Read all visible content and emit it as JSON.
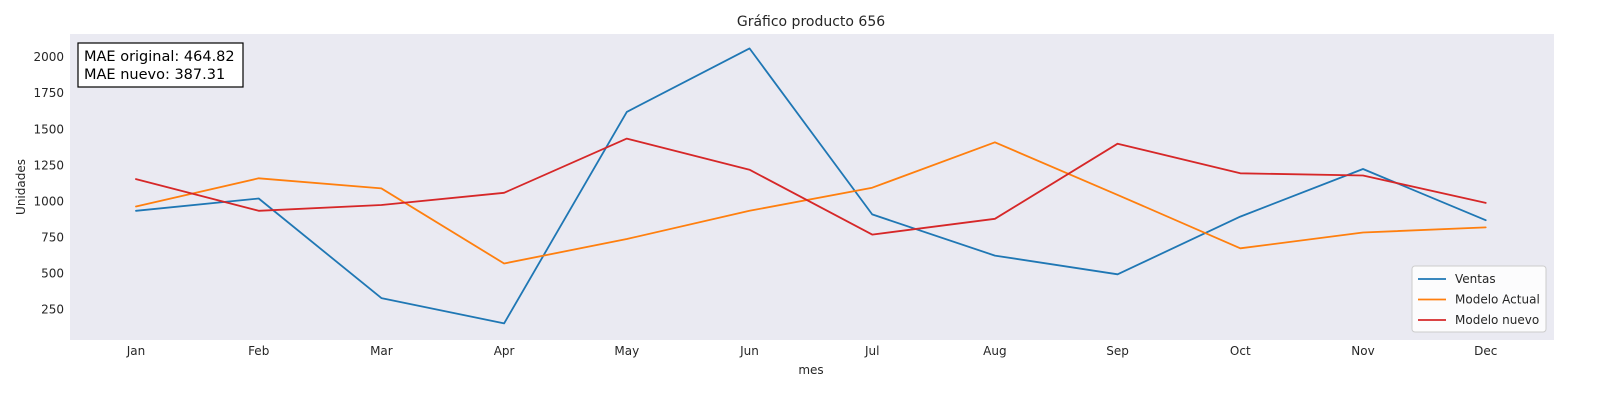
{
  "chart_data": {
    "type": "line",
    "title": "Gráfico producto 656",
    "xlabel": "mes",
    "ylabel": "Unidades",
    "categories": [
      "Jan",
      "Feb",
      "Mar",
      "Apr",
      "May",
      "Jun",
      "Jul",
      "Aug",
      "Sep",
      "Oct",
      "Nov",
      "Dec"
    ],
    "yticks": [
      250,
      500,
      750,
      1000,
      1250,
      1500,
      1750,
      2000
    ],
    "yticks_labels": [
      "250",
      "500",
      "750",
      "1000",
      "1250",
      "1500",
      "1750",
      "2000"
    ],
    "ylim": [
      40,
      2160
    ],
    "grid": false,
    "legend_position": "lower-right",
    "annotation": {
      "line1": "MAE original: 464.82",
      "line2": "MAE nuevo: 387.31"
    },
    "series": [
      {
        "name": "Ventas",
        "color": "#1f77b4",
        "values": [
          935,
          1020,
          330,
          155,
          1620,
          2060,
          910,
          625,
          495,
          895,
          1225,
          870
        ]
      },
      {
        "name": "Modelo Actual",
        "color": "#ff7f0e",
        "values": [
          965,
          1160,
          1090,
          570,
          740,
          935,
          1095,
          1410,
          1045,
          675,
          785,
          820
        ]
      },
      {
        "name": "Modelo nuevo",
        "color": "#d62728",
        "values": [
          1155,
          935,
          975,
          1060,
          1435,
          1220,
          770,
          880,
          1400,
          1195,
          1180,
          990
        ]
      }
    ]
  }
}
